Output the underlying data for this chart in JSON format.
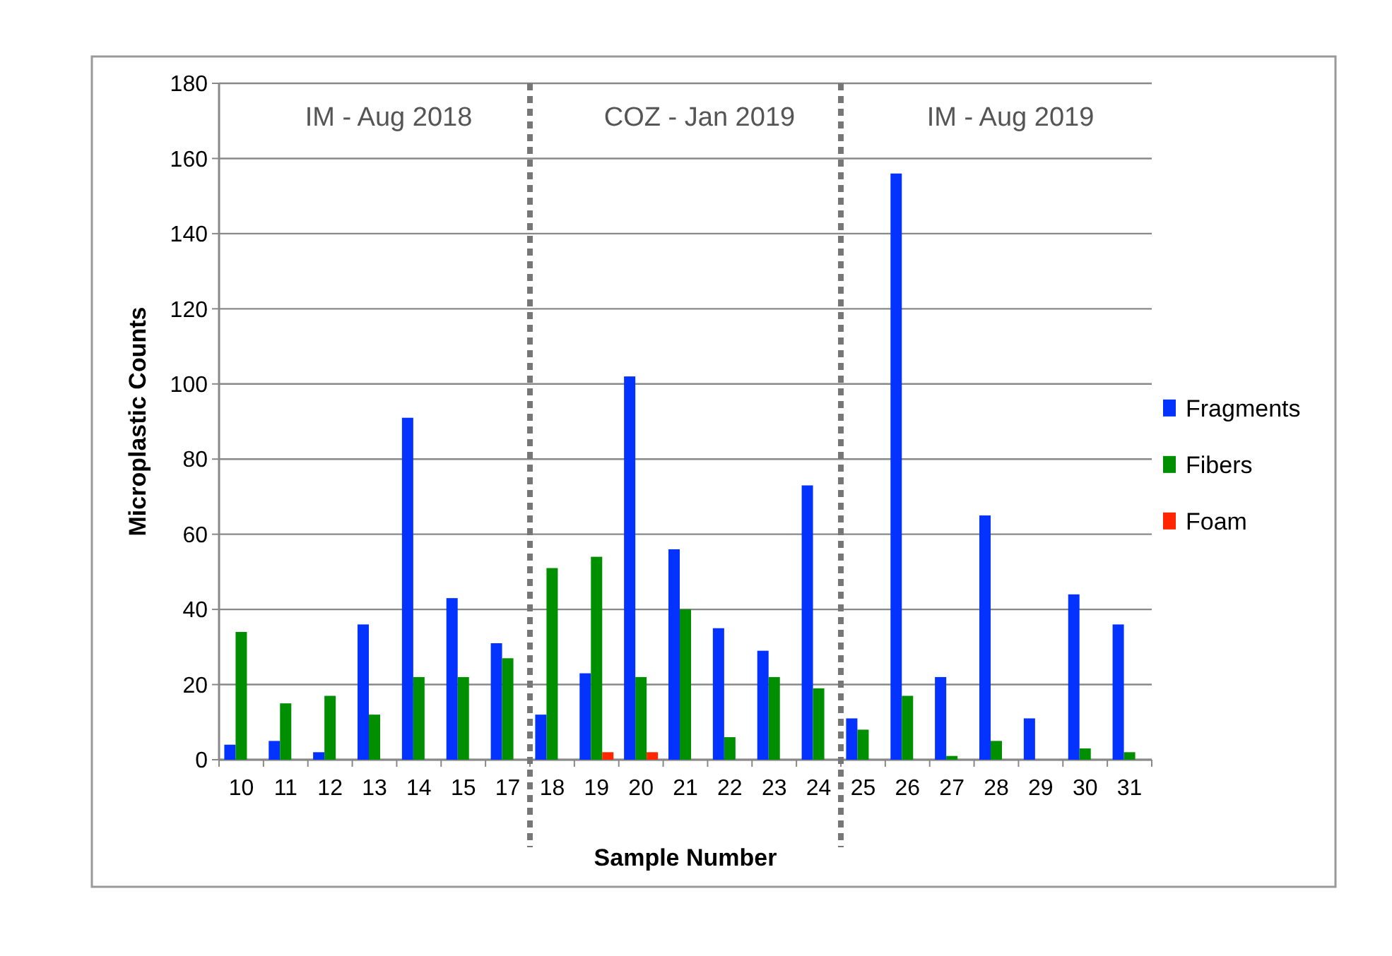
{
  "chart_data": {
    "type": "bar",
    "xlabel": "Sample Number",
    "ylabel": "Microplastic Counts",
    "categories": [
      "10",
      "11",
      "12",
      "13",
      "14",
      "15",
      "17",
      "18",
      "19",
      "20",
      "21",
      "22",
      "23",
      "24",
      "25",
      "26",
      "27",
      "28",
      "29",
      "30",
      "31"
    ],
    "series": [
      {
        "name": "Fragments",
        "color": "#0433ff",
        "values": [
          4,
          5,
          2,
          36,
          91,
          43,
          31,
          12,
          23,
          102,
          56,
          35,
          29,
          73,
          11,
          156,
          22,
          65,
          11,
          44,
          36
        ]
      },
      {
        "name": "Fibers",
        "color": "#008f00",
        "values": [
          34,
          15,
          17,
          12,
          22,
          22,
          27,
          51,
          54,
          22,
          40,
          6,
          22,
          19,
          8,
          17,
          1,
          5,
          0,
          3,
          2
        ]
      },
      {
        "name": "Foam",
        "color": "#ff2600",
        "values": [
          0,
          0,
          0,
          0,
          0,
          0,
          0,
          0,
          2,
          2,
          0,
          0,
          0,
          0,
          0,
          0,
          0,
          0,
          0,
          0,
          0
        ]
      }
    ],
    "ylim": [
      0,
      180
    ],
    "yticks": [
      0,
      20,
      40,
      60,
      80,
      100,
      120,
      140,
      160,
      180
    ],
    "grid": "y",
    "legend": "right",
    "annotations": [
      "IM - Aug 2018",
      "COZ - Jan 2019",
      "IM - Aug 2019"
    ]
  }
}
